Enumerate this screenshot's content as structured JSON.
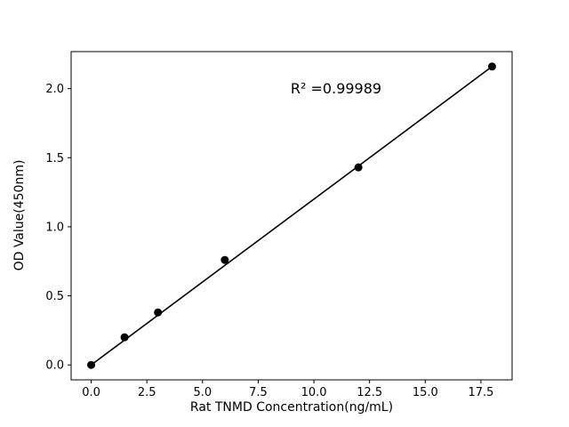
{
  "figure": {
    "background": "#ffffff"
  },
  "chart_data": {
    "type": "scatter",
    "title": "",
    "xlabel": "Rat TNMD Concentration(ng/mL)",
    "ylabel": "OD Value(450nm)",
    "annotation": {
      "text": "R² =0.99989",
      "x_data": 11.0,
      "y_data": 2.0
    },
    "points": {
      "x": [
        0.0,
        1.5,
        3.0,
        6.0,
        12.0,
        18.0
      ],
      "y": [
        0.0,
        0.2,
        0.38,
        0.76,
        1.43,
        2.16
      ]
    },
    "fit_line": {
      "x": [
        0.0,
        18.0
      ],
      "y": [
        0.0,
        2.16
      ]
    },
    "xlim": [
      -0.9,
      18.9
    ],
    "ylim": [
      -0.108,
      2.268
    ],
    "xticks": [
      0.0,
      2.5,
      5.0,
      7.5,
      10.0,
      12.5,
      15.0,
      17.5
    ],
    "yticks": [
      0.0,
      0.5,
      1.0,
      1.5,
      2.0
    ],
    "xtick_labels": [
      "0.0",
      "2.5",
      "5.0",
      "7.5",
      "10.0",
      "12.5",
      "15.0",
      "17.5"
    ],
    "ytick_labels": [
      "0.0",
      "0.5",
      "1.0",
      "1.5",
      "2.0"
    ],
    "grid": false,
    "legend": "none",
    "marker_color": "#000000",
    "line_color": "#000000",
    "marker_radius": 4.5,
    "line_width": 1.6
  }
}
